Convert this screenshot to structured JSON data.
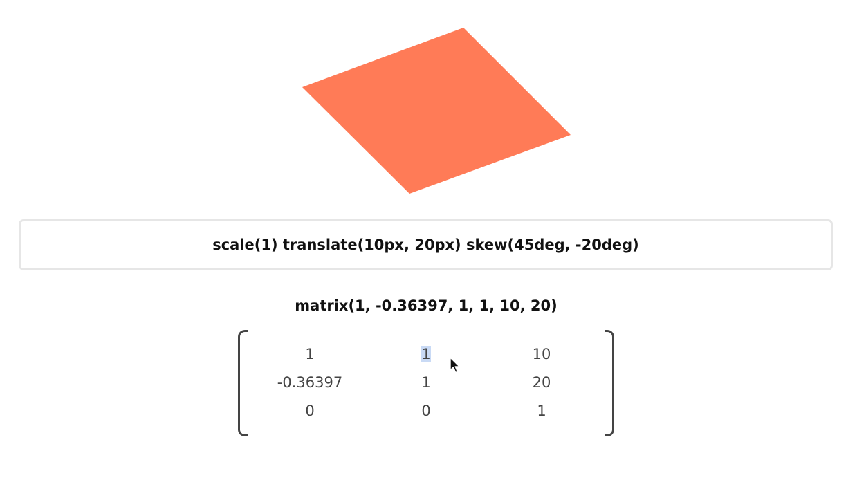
{
  "preview": {
    "shape_color": "#ff7b57"
  },
  "transform_input": {
    "value": "scale(1) translate(10px, 20px) skew(45deg, -20deg)"
  },
  "matrix": {
    "title": "matrix(1, -0.36397, 1, 1, 10, 20)",
    "rows": [
      [
        "1",
        "1",
        "10"
      ],
      [
        "-0.36397",
        "1",
        "20"
      ],
      [
        "0",
        "0",
        "1"
      ]
    ],
    "selected_cell": "1"
  },
  "cursor_icon": "mouse-pointer-icon"
}
